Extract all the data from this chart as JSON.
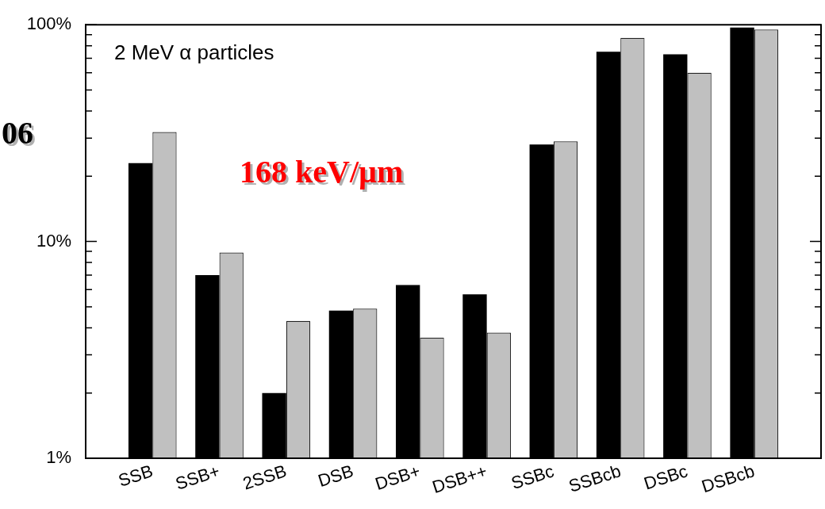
{
  "chart_data": {
    "type": "bar",
    "categories": [
      "SSB",
      "SSB+",
      "2SSB",
      "DSB",
      "DSB+",
      "DSB++",
      "SSBc",
      "SSBcb",
      "DSBc",
      "DSBcb"
    ],
    "series": [
      {
        "color": "#000000",
        "values": [
          23,
          7.0,
          2.0,
          4.8,
          6.3,
          5.7,
          28,
          75,
          73,
          97
        ]
      },
      {
        "color": "#c0c0c0",
        "values": [
          32,
          8.9,
          4.3,
          4.9,
          3.6,
          3.8,
          29,
          87,
          60,
          95
        ]
      }
    ],
    "log": "y",
    "ylim": [
      1,
      100
    ],
    "yticks": [
      {
        "value": 1,
        "label": "1%"
      },
      {
        "value": 2,
        "label": null
      },
      {
        "value": 3,
        "label": null
      },
      {
        "value": 4,
        "label": null
      },
      {
        "value": 5,
        "label": null
      },
      {
        "value": 6,
        "label": null
      },
      {
        "value": 7,
        "label": null
      },
      {
        "value": 8,
        "label": null
      },
      {
        "value": 9,
        "label": null
      },
      {
        "value": 10,
        "label": "10%"
      },
      {
        "value": 20,
        "label": null
      },
      {
        "value": 30,
        "label": null
      },
      {
        "value": 40,
        "label": null
      },
      {
        "value": 50,
        "label": null
      },
      {
        "value": 60,
        "label": null
      },
      {
        "value": 70,
        "label": null
      },
      {
        "value": 80,
        "label": null
      },
      {
        "value": 90,
        "label": null
      },
      {
        "value": 100,
        "label": "100%"
      }
    ],
    "grid": false,
    "legend": false,
    "annotations": [
      "2 MeV α particles",
      "168 keV/µm",
      "06"
    ]
  }
}
